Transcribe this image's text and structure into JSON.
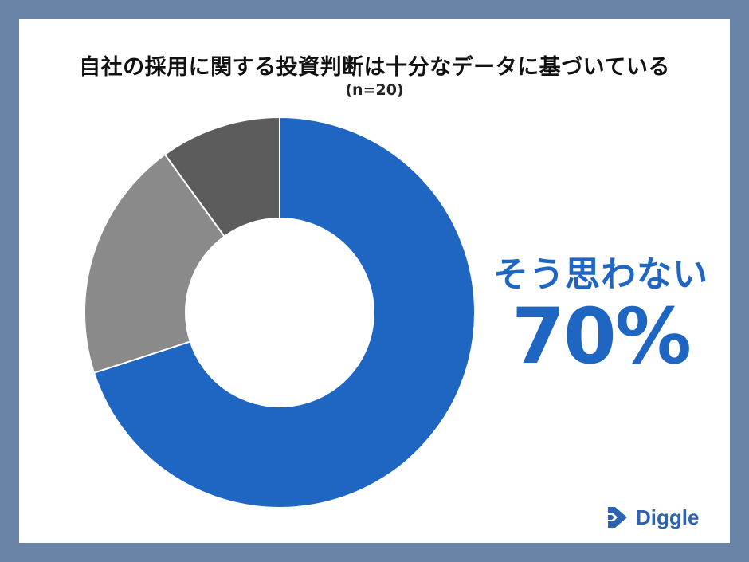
{
  "title": "自社の採用に関する投資判断は十分なデータに基づいている",
  "subtitle": "(n=20)",
  "callout": {
    "label": "そう思わない",
    "value": "70%"
  },
  "brand": {
    "name": "Diggle",
    "logo_icon": "diggle-logo-icon"
  },
  "chart_data": {
    "type": "pie",
    "donut": true,
    "title": "自社の採用に関する投資判断は十分なデータに基づいている",
    "subtitle": "(n=20)",
    "slices": [
      {
        "value": 70,
        "color": "#1f66c2"
      },
      {
        "value": 20,
        "color": "#8a8a8a"
      },
      {
        "value": 10,
        "color": "#5c5c5c"
      }
    ],
    "annotations": [
      {
        "text": "そう思わない",
        "value_label": "70%",
        "slice": 0
      }
    ],
    "start_angle_deg": 0,
    "direction": "clockwise"
  }
}
